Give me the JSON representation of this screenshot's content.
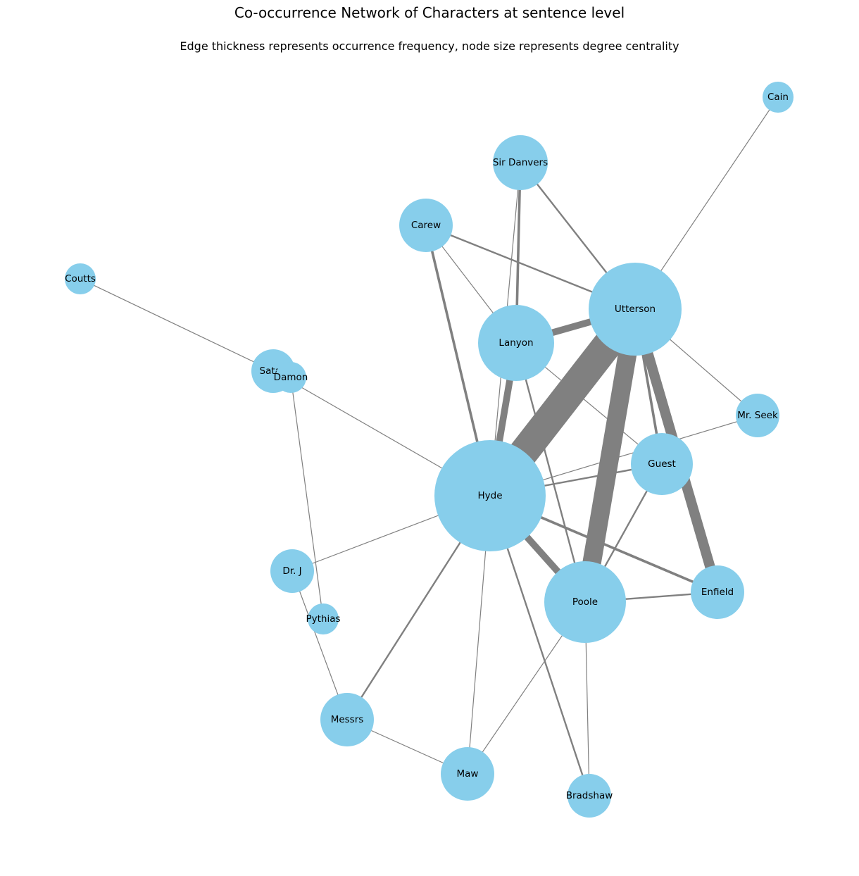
{
  "title": "Co-occurrence Network of Characters at sentence level",
  "subtitle": "Edge thickness represents occurrence frequency, node size represents degree centrality",
  "colors": {
    "node": "#87ceeb",
    "edge": "#808080",
    "background": "#ffffff"
  },
  "nodes": [
    {
      "id": "cain",
      "label": "Cain"
    },
    {
      "id": "sir_danvers",
      "label": "Sir Danvers"
    },
    {
      "id": "carew",
      "label": "Carew"
    },
    {
      "id": "coutts",
      "label": "Coutts"
    },
    {
      "id": "utterson",
      "label": "Utterson"
    },
    {
      "id": "lanyon",
      "label": "Lanyon"
    },
    {
      "id": "satan",
      "label": "Satan"
    },
    {
      "id": "damon",
      "label": "Damon"
    },
    {
      "id": "mr_seek",
      "label": "Mr. Seek"
    },
    {
      "id": "guest",
      "label": "Guest"
    },
    {
      "id": "hyde",
      "label": "Hyde"
    },
    {
      "id": "dr_j",
      "label": "Dr. J"
    },
    {
      "id": "enfield",
      "label": "Enfield"
    },
    {
      "id": "poole",
      "label": "Poole"
    },
    {
      "id": "pythias",
      "label": "Pythias"
    },
    {
      "id": "messrs",
      "label": "Messrs"
    },
    {
      "id": "maw",
      "label": "Maw"
    },
    {
      "id": "bradshaw",
      "label": "Bradshaw"
    }
  ],
  "edges": [
    {
      "source": "utterson",
      "target": "cain",
      "weight": 1
    },
    {
      "source": "utterson",
      "target": "sir_danvers",
      "weight": 2
    },
    {
      "source": "utterson",
      "target": "carew",
      "weight": 2
    },
    {
      "source": "utterson",
      "target": "lanyon",
      "weight": 8
    },
    {
      "source": "utterson",
      "target": "hyde",
      "weight": 40
    },
    {
      "source": "utterson",
      "target": "poole",
      "weight": 22
    },
    {
      "source": "utterson",
      "target": "enfield",
      "weight": 12
    },
    {
      "source": "utterson",
      "target": "guest",
      "weight": 3
    },
    {
      "source": "utterson",
      "target": "mr_seek",
      "weight": 1
    },
    {
      "source": "coutts",
      "target": "satan",
      "weight": 1
    },
    {
      "source": "satan",
      "target": "hyde",
      "weight": 1
    },
    {
      "source": "damon",
      "target": "pythias",
      "weight": 1
    },
    {
      "source": "sir_danvers",
      "target": "lanyon",
      "weight": 3
    },
    {
      "source": "sir_danvers",
      "target": "hyde",
      "weight": 1
    },
    {
      "source": "carew",
      "target": "hyde",
      "weight": 3
    },
    {
      "source": "carew",
      "target": "lanyon",
      "weight": 1
    },
    {
      "source": "lanyon",
      "target": "hyde",
      "weight": 8
    },
    {
      "source": "lanyon",
      "target": "guest",
      "weight": 1
    },
    {
      "source": "lanyon",
      "target": "poole",
      "weight": 2
    },
    {
      "source": "hyde",
      "target": "guest",
      "weight": 2
    },
    {
      "source": "hyde",
      "target": "mr_seek",
      "weight": 1
    },
    {
      "source": "hyde",
      "target": "poole",
      "weight": 8
    },
    {
      "source": "hyde",
      "target": "enfield",
      "weight": 3
    },
    {
      "source": "hyde",
      "target": "dr_j",
      "weight": 1
    },
    {
      "source": "hyde",
      "target": "messrs",
      "weight": 2
    },
    {
      "source": "hyde",
      "target": "maw",
      "weight": 1
    },
    {
      "source": "hyde",
      "target": "bradshaw",
      "weight": 2
    },
    {
      "source": "poole",
      "target": "enfield",
      "weight": 2
    },
    {
      "source": "poole",
      "target": "guest",
      "weight": 2
    },
    {
      "source": "poole",
      "target": "maw",
      "weight": 1
    },
    {
      "source": "poole",
      "target": "bradshaw",
      "weight": 1
    },
    {
      "source": "dr_j",
      "target": "messrs",
      "weight": 1
    },
    {
      "source": "messrs",
      "target": "maw",
      "weight": 1
    }
  ]
}
